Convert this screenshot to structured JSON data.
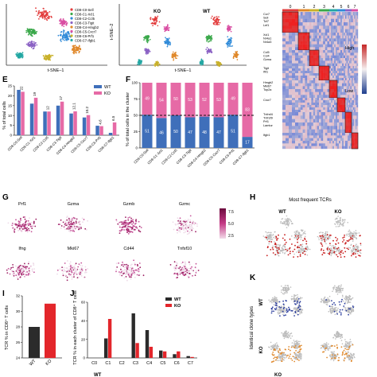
{
  "panels": {
    "tsne": {
      "clusters": [
        "CD8-C0-Sell",
        "CD8-C1-Xcl1",
        "CD8-C2-Ccl5",
        "CD8-C3-Tigit",
        "CD8-C4-Hmgb2",
        "CD8-C5-Cxcr7",
        "CD8-C6-Prf1",
        "CD8-C7-Ifgb1"
      ],
      "colors": [
        "#e23a3a",
        "#3aa84a",
        "#2f8ad8",
        "#8b62c4",
        "#e0882a",
        "#d94fa3",
        "#c9b12a",
        "#23a7a3"
      ],
      "xlabel": "t-SNE–1",
      "ylabel": "t-SNE–2",
      "ko_label": "KO",
      "wt_label": "WT"
    },
    "heatmap": {
      "top_labels": [
        "0",
        "1",
        "2",
        "3",
        "4",
        "5",
        "6",
        "7"
      ],
      "bar_colors": [
        "#e23a3a",
        "#e0882a",
        "#c9b12a",
        "#3aa84a",
        "#23a7a3",
        "#2f8ad8",
        "#8b62c4",
        "#d94fa3"
      ],
      "gene_groups": [
        [
          "Ccr7",
          "Sell",
          "Tcf7",
          "Lef1"
        ],
        [
          "Xcl1",
          "Nr4a1",
          "Nr4a3"
        ],
        [
          "Ccl5",
          "Ccl4",
          "Gzma"
        ],
        [
          "Tigit",
          "Ifit1"
        ],
        [
          "Hmgb2",
          "Mki67",
          "Top2a"
        ],
        [
          "Cxcr7"
        ],
        [
          "Tnfrsf4",
          "Tnfrsf9",
          "Prf1",
          "Lamtor"
        ],
        [
          "Ifgb1"
        ]
      ],
      "legend_high": "High",
      "legend_low": "Low"
    },
    "E": {
      "letter": "E",
      "chart_data": {
        "type": "bar",
        "categories": [
          "CD8-C0-Sell",
          "CD8-C1-Xcl1",
          "CD8-C2-Ccl5",
          "CD8-C3-Tigit",
          "CD8-C4-Hmgb2",
          "CD8-C5-Cxcr7",
          "CD8-C6-Prf1",
          "CD8-C7-Ifgb1"
        ],
        "series": [
          {
            "name": "WT",
            "color": "#3f6fba",
            "values": [
              23,
              16,
              12,
              15,
              11,
              9,
              4.8,
              1.2
            ]
          },
          {
            "name": "KO",
            "color": "#e66aa6",
            "values": [
              22,
              19,
              12,
              17,
              12.1,
              10.2,
              4.6,
              6.5
            ]
          }
        ],
        "value_labels": [
          "22",
          "19",
          "12",
          "17",
          "12.1",
          "10.2",
          "4.6",
          "6.5"
        ],
        "ylabel": "% of total cells",
        "ylim": [
          0,
          25
        ],
        "yticks": [
          "0",
          "5",
          "10",
          "15",
          "20",
          "25"
        ],
        "legend": "top-right"
      }
    },
    "F": {
      "letter": "F",
      "chart_data": {
        "type": "bar",
        "categories": [
          "CD8-C0-Sell",
          "CD8-C1-Xcl1",
          "CD8-C2-Ccl5",
          "CD8-C3-Tigit",
          "CD8-C4-Hmgb2",
          "CD8-C5-Cxcr7",
          "CD8-C6-Prf1",
          "CD8-C7-Ifgb1"
        ],
        "series": [
          {
            "name": "WT",
            "color": "#3f6fba",
            "values": [
              51,
              46,
              50,
              47,
              48,
              47,
              51,
              17
            ]
          },
          {
            "name": "KO",
            "color": "#e66aa6",
            "values": [
              49,
              54,
              50,
              53,
              52,
              53,
              49,
              83
            ]
          }
        ],
        "wt_labels": [
          "51",
          "46",
          "50",
          "47",
          "48",
          "47",
          "51",
          "17"
        ],
        "ko_labels": [
          "49",
          "54",
          "50",
          "53",
          "52",
          "53",
          "49",
          "83"
        ],
        "ylabel": "% of total cells in the cluster",
        "ylim": [
          0,
          100
        ],
        "yticks": [
          "0",
          "25",
          "50",
          "75",
          "100"
        ],
        "reference_line": 50
      }
    },
    "G": {
      "letter": "G",
      "genes_row1": [
        "Prf1",
        "Gzma",
        "Gzmb",
        "Gzmc"
      ],
      "genes_row2": [
        "Ifng",
        "Mki67",
        "Cd44",
        "Tnfsf10"
      ],
      "colorbar_ticks": [
        "7.5",
        "5.0",
        "2.5"
      ]
    },
    "H": {
      "letter": "H",
      "title": "Most frequent TCRs",
      "wt_label": "WT",
      "ko_label": "KO"
    },
    "I": {
      "letter": "I",
      "chart_data": {
        "type": "bar",
        "categories": [
          "WT",
          "KO"
        ],
        "values": [
          28,
          31
        ],
        "colors": [
          "#2b2b2b",
          "#e3262b"
        ],
        "ylabel": "TCR % in CD8⁺ T cells",
        "ylim": [
          24,
          32
        ],
        "yticks": [
          "24",
          "26",
          "28",
          "30",
          "32"
        ]
      }
    },
    "J": {
      "letter": "J",
      "chart_data": {
        "type": "bar",
        "categories": [
          "C0",
          "C1",
          "C2",
          "C3",
          "C4",
          "C5",
          "C6",
          "C7"
        ],
        "series": [
          {
            "name": "WT",
            "color": "#2b2b2b",
            "values": [
              0,
              21,
              0,
              48,
              30,
              8,
              4,
              2
            ]
          },
          {
            "name": "KO",
            "color": "#e3262b",
            "values": [
              0,
              42,
              0,
              16,
              12,
              7,
              7,
              1
            ]
          }
        ],
        "ylabel": "TCR % in each cluster of CD8⁺ T cells",
        "ylim": [
          0,
          60
        ],
        "yticks": [
          "0",
          "20",
          "40",
          "60"
        ],
        "legend": "top-right"
      }
    },
    "K": {
      "letter": "K",
      "side_label": "Identical clone types",
      "wt_label": "WT",
      "ko_label": "KO"
    },
    "bottom_labels": [
      "WT",
      "KO"
    ]
  }
}
